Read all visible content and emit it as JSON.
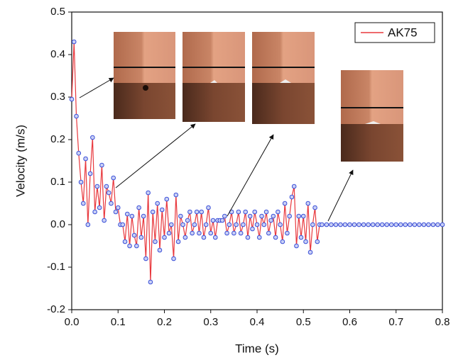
{
  "chart_data": {
    "type": "line",
    "xlabel": "Time (s)",
    "ylabel": "Velocity (m/s)",
    "xlim": [
      0,
      0.8
    ],
    "xticks": [
      {
        "value": 0,
        "label": "0.0"
      },
      0.1,
      0.2,
      0.3,
      0.4,
      0.5,
      0.6,
      0.7,
      0.8
    ],
    "ylim": [
      -0.2,
      0.5
    ],
    "yticks": [
      -0.2,
      -0.1,
      {
        "value": 0,
        "label": "0.0"
      },
      0.1,
      0.2,
      0.3,
      0.4,
      0.5
    ],
    "legend": "upper right",
    "marker_color": "#3a4fd8",
    "x": [
      0,
      0.005,
      0.01,
      0.015,
      0.02,
      0.025,
      0.03,
      0.035,
      0.04,
      0.045,
      0.05,
      0.055,
      0.06,
      0.065,
      0.07,
      0.075,
      0.08,
      0.085,
      0.09,
      0.095,
      0.1,
      0.105,
      0.11,
      0.115,
      0.12,
      0.125,
      0.13,
      0.135,
      0.14,
      0.145,
      0.15,
      0.155,
      0.16,
      0.165,
      0.17,
      0.175,
      0.18,
      0.185,
      0.19,
      0.195,
      0.2,
      0.205,
      0.21,
      0.215,
      0.22,
      0.225,
      0.23,
      0.235,
      0.24,
      0.245,
      0.25,
      0.255,
      0.26,
      0.265,
      0.27,
      0.275,
      0.28,
      0.285,
      0.29,
      0.295,
      0.3,
      0.305,
      0.31,
      0.315,
      0.32,
      0.325,
      0.33,
      0.335,
      0.34,
      0.345,
      0.35,
      0.355,
      0.36,
      0.365,
      0.37,
      0.375,
      0.38,
      0.385,
      0.39,
      0.395,
      0.4,
      0.405,
      0.41,
      0.415,
      0.42,
      0.425,
      0.43,
      0.435,
      0.44,
      0.445,
      0.45,
      0.455,
      0.46,
      0.465,
      0.47,
      0.475,
      0.48,
      0.485,
      0.49,
      0.495,
      0.5,
      0.505,
      0.51,
      0.515,
      0.52,
      0.525,
      0.53,
      0.535,
      0.54,
      0.55,
      0.56,
      0.57,
      0.58,
      0.59,
      0.6,
      0.61,
      0.62,
      0.63,
      0.64,
      0.65,
      0.66,
      0.67,
      0.68,
      0.69,
      0.7,
      0.71,
      0.72,
      0.73,
      0.74,
      0.75,
      0.76,
      0.77,
      0.78,
      0.79,
      0.8
    ],
    "series": [
      {
        "name": "AK75",
        "color": "#e8383d",
        "values": [
          0.295,
          0.43,
          0.255,
          0.168,
          0.1,
          0.05,
          0.155,
          0.0,
          0.12,
          0.205,
          0.03,
          0.09,
          0.04,
          0.14,
          0.01,
          0.09,
          0.075,
          0.05,
          0.11,
          0.03,
          0.04,
          0.0,
          0.0,
          -0.04,
          0.025,
          -0.05,
          0.02,
          -0.025,
          -0.05,
          0.04,
          -0.03,
          0.02,
          -0.08,
          0.075,
          -0.135,
          0.03,
          -0.04,
          0.05,
          -0.06,
          0.035,
          -0.03,
          0.06,
          -0.02,
          0.0,
          -0.08,
          0.07,
          -0.04,
          0.02,
          0.0,
          -0.03,
          0.01,
          0.03,
          -0.02,
          0.0,
          0.03,
          -0.02,
          0.03,
          -0.03,
          0.0,
          0.04,
          -0.02,
          0.01,
          -0.03,
          0.01,
          0.01,
          0.01,
          0.02,
          -0.02,
          0.0,
          0.03,
          -0.02,
          0.0,
          0.03,
          -0.02,
          0.0,
          0.03,
          -0.03,
          0.02,
          -0.01,
          0.03,
          0.0,
          -0.03,
          0.02,
          0.0,
          0.03,
          -0.02,
          0.01,
          0.02,
          -0.03,
          0.03,
          0.0,
          -0.04,
          0.05,
          -0.02,
          0.02,
          0.065,
          0.09,
          -0.05,
          0.02,
          -0.03,
          0.02,
          -0.04,
          0.05,
          -0.065,
          0.0,
          0.04,
          -0.04,
          0.0,
          0.0,
          0.0,
          0.0,
          0.0,
          0.0,
          0.0,
          0.0,
          0.0,
          0.0,
          0.0,
          0.0,
          0.0,
          0.0,
          0.0,
          0.0,
          0.0,
          0.0,
          0.0,
          0.0,
          0.0,
          0.0,
          0.0,
          0.0,
          0.0,
          0.0,
          0.0,
          0.0
        ]
      }
    ]
  }
}
